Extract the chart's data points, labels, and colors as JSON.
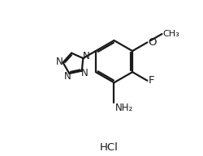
{
  "background_color": "#ffffff",
  "line_color": "#1a1a1a",
  "line_width": 1.6,
  "font_size_labels": 8.5,
  "font_size_hcl": 9.5,
  "hcl_label": "HCl",
  "label_N": "N",
  "label_F": "F",
  "label_O": "O",
  "label_NH2": "NH₂",
  "label_CH3": "CH₃"
}
